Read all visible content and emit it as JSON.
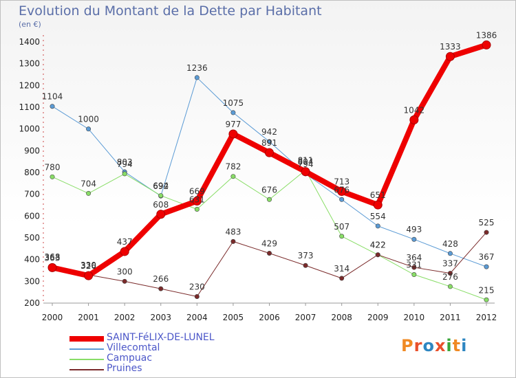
{
  "title": "Evolution du Montant de la Dette par Habitant",
  "unit": "(en €)",
  "brand": {
    "text": "Proxiti",
    "colors": [
      "#f08a24",
      "#e9502b",
      "#2e86c1",
      "#e9502b",
      "#3aa63a",
      "#f08a24",
      "#2e86c1"
    ]
  },
  "chart_data": {
    "type": "line",
    "title": "Evolution du Montant de la Dette par Habitant",
    "subtitle": "(en €)",
    "x": [
      "2000",
      "2001",
      "2002",
      "2003",
      "2004",
      "2005",
      "2006",
      "2007",
      "2008",
      "2009",
      "2010",
      "2011",
      "2012"
    ],
    "ylim": [
      200,
      1400
    ],
    "yticks": [
      200,
      300,
      400,
      500,
      600,
      700,
      800,
      900,
      1000,
      1100,
      1200,
      1300,
      1400
    ],
    "grid": false,
    "legend_position": "bottom-left",
    "series": [
      {
        "name": "SAINT-FéLIX-DE-LUNEL",
        "color": "#ee0000",
        "width": 8,
        "values": [
          363,
          326,
          437,
          608,
          669,
          977,
          891,
          804,
          713,
          651,
          1042,
          1333,
          1386
        ]
      },
      {
        "name": "Villecomtal",
        "color": "#5b9bd5",
        "width": 1,
        "values": [
          1104,
          1000,
          803,
          692,
          1236,
          1075,
          942,
          794,
          676,
          554,
          493,
          428,
          367
        ]
      },
      {
        "name": "Campuac",
        "color": "#88dd66",
        "width": 1,
        "values": [
          780,
          704,
          794,
          694,
          631,
          782,
          676,
          811,
          507,
          422,
          331,
          276,
          215
        ]
      },
      {
        "name": "Pruines",
        "color": "#7a2a2a",
        "width": 1,
        "values": [
          368,
          330,
          300,
          266,
          230,
          483,
          429,
          373,
          314,
          422,
          364,
          337,
          525
        ]
      }
    ]
  }
}
